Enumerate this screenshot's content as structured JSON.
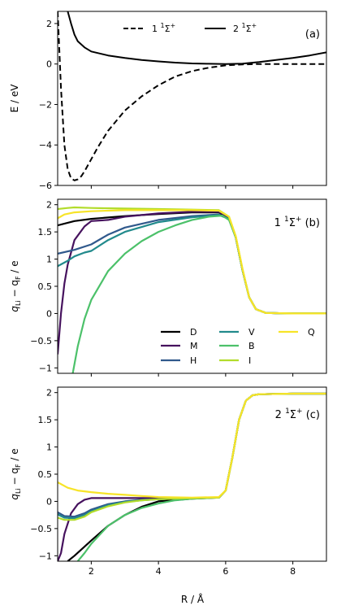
{
  "figure": {
    "xlabel": "R / Å",
    "xlim": [
      1,
      9
    ],
    "x_ticks": [
      2,
      4,
      6,
      8
    ]
  },
  "chart_data": [
    {
      "type": "line",
      "panel_label": "(a)",
      "ylabel": "E / eV",
      "ylim": [
        -6,
        2.6
      ],
      "y_ticks": [
        -6,
        -4,
        -2,
        0,
        2
      ],
      "legend_location": "top-center",
      "series": [
        {
          "name": "1 ¹Σ⁺",
          "legend_label": "1",
          "legend_sup": "1",
          "legend_sym": "Σ",
          "legend_sup2": "+",
          "color": "#000000",
          "dash": "7,4",
          "x": [
            1.0,
            1.1,
            1.2,
            1.3,
            1.4,
            1.5,
            1.6,
            1.7,
            1.8,
            2.0,
            2.2,
            2.5,
            3.0,
            3.5,
            4.0,
            4.5,
            5.0,
            5.5,
            6.0,
            6.5,
            7.0,
            7.5,
            8.0,
            8.5,
            9.0
          ],
          "y": [
            2.6,
            -1.2,
            -4.0,
            -5.2,
            -5.65,
            -5.75,
            -5.7,
            -5.55,
            -5.3,
            -4.7,
            -4.1,
            -3.3,
            -2.3,
            -1.6,
            -1.05,
            -0.62,
            -0.35,
            -0.18,
            -0.07,
            -0.02,
            0.0,
            0.0,
            0.0,
            0.0,
            0.0
          ]
        },
        {
          "name": "2 ¹Σ⁺",
          "legend_label": "2",
          "legend_sup": "1",
          "legend_sym": "Σ",
          "legend_sup2": "+",
          "color": "#000000",
          "dash": "",
          "x": [
            1.3,
            1.4,
            1.5,
            1.6,
            1.8,
            2.0,
            2.5,
            3.0,
            3.5,
            4.0,
            4.5,
            5.0,
            5.5,
            6.0,
            6.5,
            7.0,
            7.5,
            8.0,
            8.5,
            9.0
          ],
          "y": [
            2.6,
            2.0,
            1.45,
            1.12,
            0.82,
            0.62,
            0.42,
            0.3,
            0.2,
            0.13,
            0.07,
            0.03,
            0.01,
            0.0,
            0.02,
            0.1,
            0.2,
            0.3,
            0.42,
            0.58
          ]
        }
      ]
    },
    {
      "type": "line",
      "panel_label": "(b)",
      "state_label": {
        "n": "1",
        "sup": "1",
        "sym": "Σ",
        "sup2": "+"
      },
      "ylabel_main": "q",
      "ylabel_sub1": "Li",
      "ylabel_mid": " − q",
      "ylabel_sub2": "F",
      "ylabel_tail": " / e",
      "ylim": [
        -1.1,
        2.1
      ],
      "y_ticks": [
        -1.0,
        -0.5,
        0.0,
        0.5,
        1.0,
        1.5,
        2.0
      ],
      "legend_location": "lower-right",
      "series": [
        {
          "name": "D",
          "color": "#000000",
          "x": [
            1.0,
            1.5,
            2.0,
            3.0,
            4.0,
            5.0,
            5.8,
            6.1,
            6.3,
            6.5,
            6.7,
            6.9,
            7.2,
            8.0,
            9.0
          ],
          "y": [
            1.62,
            1.7,
            1.74,
            1.79,
            1.83,
            1.86,
            1.86,
            1.75,
            1.4,
            0.8,
            0.3,
            0.08,
            0.01,
            0.0,
            0.0
          ]
        },
        {
          "name": "M",
          "color": "#46125e",
          "x": [
            1.0,
            1.1,
            1.2,
            1.3,
            1.5,
            1.8,
            2.0,
            2.5,
            3.0,
            4.0,
            5.0,
            5.8,
            6.1,
            6.3,
            6.5,
            6.7,
            6.9,
            7.2,
            8.0,
            9.0
          ],
          "y": [
            -0.75,
            0.0,
            0.55,
            0.9,
            1.35,
            1.6,
            1.7,
            1.72,
            1.78,
            1.84,
            1.87,
            1.87,
            1.76,
            1.4,
            0.8,
            0.3,
            0.08,
            0.01,
            0.0,
            0.0
          ]
        },
        {
          "name": "H",
          "color": "#30598c",
          "x": [
            1.0,
            1.5,
            2.0,
            2.5,
            3.0,
            4.0,
            5.0,
            5.8,
            6.1,
            6.3,
            6.5,
            6.7,
            6.9,
            7.2,
            8.0,
            9.0
          ],
          "y": [
            1.1,
            1.17,
            1.27,
            1.45,
            1.58,
            1.72,
            1.79,
            1.82,
            1.74,
            1.4,
            0.8,
            0.3,
            0.08,
            0.01,
            0.0,
            0.0
          ]
        },
        {
          "name": "V",
          "color": "#228a8c",
          "x": [
            1.0,
            1.3,
            1.5,
            1.8,
            2.0,
            2.5,
            3.0,
            4.0,
            5.0,
            5.8,
            6.1,
            6.3,
            6.5,
            6.7,
            6.9,
            7.2,
            8.0,
            9.0
          ],
          "y": [
            0.87,
            0.97,
            1.05,
            1.12,
            1.15,
            1.35,
            1.5,
            1.68,
            1.77,
            1.81,
            1.74,
            1.4,
            0.8,
            0.3,
            0.08,
            0.01,
            0.0,
            0.0
          ]
        },
        {
          "name": "B",
          "color": "#4cc16a",
          "x": [
            1.45,
            1.6,
            1.8,
            2.0,
            2.5,
            3.0,
            3.5,
            4.0,
            4.5,
            5.0,
            5.5,
            5.9,
            6.1,
            6.3,
            6.5,
            6.7,
            6.9,
            7.2,
            8.0,
            9.0
          ],
          "y": [
            -1.1,
            -0.6,
            -0.1,
            0.25,
            0.78,
            1.1,
            1.33,
            1.5,
            1.62,
            1.72,
            1.78,
            1.8,
            1.72,
            1.4,
            0.8,
            0.3,
            0.08,
            0.01,
            0.0,
            0.0
          ]
        },
        {
          "name": "I",
          "color": "#b2dc2b",
          "x": [
            1.0,
            1.3,
            1.5,
            2.0,
            3.0,
            4.0,
            5.0,
            5.8,
            6.1,
            6.3,
            6.5,
            6.7,
            6.9,
            7.2,
            8.0,
            9.0
          ],
          "y": [
            1.92,
            1.94,
            1.95,
            1.94,
            1.93,
            1.92,
            1.91,
            1.9,
            1.78,
            1.42,
            0.82,
            0.3,
            0.08,
            0.01,
            0.0,
            0.0
          ]
        },
        {
          "name": "Q",
          "color": "#f7e428",
          "x": [
            1.0,
            1.2,
            1.5,
            2.0,
            2.5,
            3.0,
            4.0,
            5.0,
            5.8,
            6.1,
            6.3,
            6.5,
            6.7,
            6.9,
            7.2,
            8.0,
            9.0
          ],
          "y": [
            1.75,
            1.82,
            1.86,
            1.88,
            1.89,
            1.9,
            1.9,
            1.9,
            1.89,
            1.78,
            1.42,
            0.82,
            0.3,
            0.08,
            0.01,
            0.0,
            0.0
          ]
        }
      ]
    },
    {
      "type": "line",
      "panel_label": "(c)",
      "state_label": {
        "n": "2",
        "sup": "1",
        "sym": "Σ",
        "sup2": "+"
      },
      "ylabel_main": "q",
      "ylabel_sub1": "Li",
      "ylabel_mid": " − q",
      "ylabel_sub2": "F",
      "ylabel_tail": " / e",
      "ylim": [
        -1.1,
        2.1
      ],
      "y_ticks": [
        -1.0,
        -0.5,
        0.0,
        0.5,
        1.0,
        1.5,
        2.0
      ],
      "series": [
        {
          "name": "D",
          "color": "#000000",
          "x": [
            1.3,
            1.5,
            2.0,
            2.5,
            3.0,
            3.5,
            4.0,
            5.0,
            5.8,
            6.0,
            6.2,
            6.4,
            6.6,
            6.8,
            7.0,
            8.0,
            9.0
          ],
          "y": [
            -1.1,
            -1.0,
            -0.72,
            -0.45,
            -0.25,
            -0.1,
            0.0,
            0.05,
            0.07,
            0.2,
            0.8,
            1.5,
            1.85,
            1.95,
            1.97,
            1.98,
            1.98
          ]
        },
        {
          "name": "M",
          "color": "#46125e",
          "x": [
            1.0,
            1.1,
            1.2,
            1.4,
            1.6,
            1.8,
            2.0,
            2.5,
            3.0,
            4.0,
            5.0,
            5.8,
            6.0,
            6.2,
            6.4,
            6.6,
            6.8,
            7.0,
            8.0,
            9.0
          ],
          "y": [
            -1.1,
            -0.95,
            -0.6,
            -0.22,
            -0.05,
            0.03,
            0.06,
            0.06,
            0.06,
            0.06,
            0.06,
            0.07,
            0.2,
            0.8,
            1.5,
            1.85,
            1.95,
            1.97,
            1.98,
            1.98
          ]
        },
        {
          "name": "H",
          "color": "#30598c",
          "x": [
            1.0,
            1.2,
            1.5,
            1.8,
            2.0,
            2.5,
            3.0,
            3.5,
            4.0,
            5.0,
            5.8,
            6.0,
            6.2,
            6.4,
            6.6,
            6.8,
            7.0,
            8.0,
            9.0
          ],
          "y": [
            -0.2,
            -0.27,
            -0.28,
            -0.22,
            -0.15,
            -0.05,
            0.0,
            0.03,
            0.04,
            0.06,
            0.07,
            0.2,
            0.8,
            1.5,
            1.85,
            1.95,
            1.97,
            1.98,
            1.98
          ]
        },
        {
          "name": "V",
          "color": "#228a8c",
          "x": [
            1.0,
            1.2,
            1.5,
            1.8,
            2.0,
            2.5,
            3.0,
            3.5,
            4.0,
            5.0,
            5.8,
            6.0,
            6.2,
            6.4,
            6.6,
            6.8,
            7.0,
            8.0,
            9.0
          ],
          "y": [
            -0.24,
            -0.3,
            -0.31,
            -0.25,
            -0.18,
            -0.07,
            -0.01,
            0.02,
            0.04,
            0.06,
            0.07,
            0.2,
            0.8,
            1.5,
            1.85,
            1.95,
            1.97,
            1.98,
            1.98
          ]
        },
        {
          "name": "B",
          "color": "#4cc16a",
          "x": [
            1.6,
            1.8,
            2.0,
            2.5,
            3.0,
            3.5,
            4.0,
            4.5,
            5.0,
            5.8,
            6.0,
            6.2,
            6.4,
            6.6,
            6.8,
            7.0,
            8.0,
            9.0
          ],
          "y": [
            -1.1,
            -0.95,
            -0.78,
            -0.45,
            -0.25,
            -0.12,
            -0.04,
            0.02,
            0.05,
            0.07,
            0.2,
            0.8,
            1.5,
            1.85,
            1.95,
            1.97,
            1.98,
            1.98
          ]
        },
        {
          "name": "I",
          "color": "#b2dc2b",
          "x": [
            1.0,
            1.2,
            1.5,
            1.8,
            2.0,
            2.5,
            3.0,
            3.5,
            4.0,
            5.0,
            5.8,
            6.0,
            6.2,
            6.4,
            6.6,
            6.8,
            7.0,
            8.0,
            9.0
          ],
          "y": [
            -0.3,
            -0.34,
            -0.34,
            -0.28,
            -0.2,
            -0.09,
            -0.02,
            0.02,
            0.04,
            0.06,
            0.07,
            0.2,
            0.8,
            1.5,
            1.85,
            1.95,
            1.97,
            1.98,
            1.98
          ]
        },
        {
          "name": "Q",
          "color": "#f7e428",
          "x": [
            1.0,
            1.3,
            1.6,
            2.0,
            2.5,
            3.0,
            3.5,
            4.0,
            5.0,
            5.8,
            6.0,
            6.2,
            6.4,
            6.6,
            6.8,
            7.0,
            8.0,
            9.0
          ],
          "y": [
            0.35,
            0.25,
            0.2,
            0.17,
            0.14,
            0.12,
            0.1,
            0.08,
            0.07,
            0.08,
            0.2,
            0.8,
            1.5,
            1.85,
            1.95,
            1.97,
            1.98,
            1.98
          ]
        }
      ]
    }
  ]
}
